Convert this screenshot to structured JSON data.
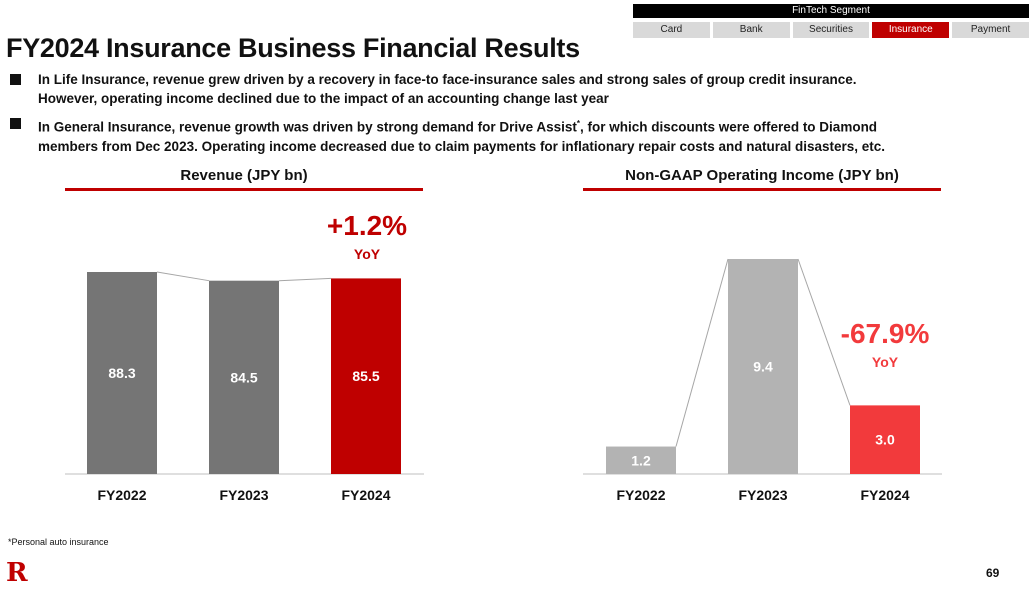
{
  "segment_nav": {
    "title": "FinTech Segment",
    "tabs": [
      {
        "label": "Card",
        "active": false
      },
      {
        "label": "Bank",
        "active": false
      },
      {
        "label": "Securities",
        "active": false
      },
      {
        "label": "Insurance",
        "active": true
      },
      {
        "label": "Payment",
        "active": false
      }
    ],
    "active_color": "#bf0000"
  },
  "page_title": "FY2024 Insurance Business Financial Results",
  "bullets": [
    {
      "lines": [
        "In Life Insurance, revenue grew driven by a recovery in face-to face-insurance sales and strong sales of group credit insurance.",
        "However, operating income declined due to the impact of an accounting change last year"
      ]
    },
    {
      "line1_pre": "In General Insurance, revenue growth was driven by strong demand for Drive Assist",
      "line1_sup": "*",
      "line1_post": ", for which discounts were offered to Diamond",
      "line2": "members from Dec 2023. Operating income decreased due to claim payments for inflationary repair costs and natural disasters, etc."
    }
  ],
  "footnote": "*Personal auto insurance",
  "page_number": "69",
  "logo_text": "R",
  "chart_data": [
    {
      "type": "bar",
      "title": "Revenue (JPY bn)",
      "categories": [
        "FY2022",
        "FY2023",
        "FY2024"
      ],
      "values": [
        88.3,
        84.5,
        85.5
      ],
      "value_labels": [
        "88.3",
        "84.5",
        "85.5"
      ],
      "colors": [
        "#757575",
        "#757575",
        "#bf0000"
      ],
      "annotation": {
        "value": "+1.2%",
        "sub": "YoY",
        "color": "#bf0000"
      }
    },
    {
      "type": "bar",
      "title": "Non-GAAP Operating Income (JPY bn)",
      "categories": [
        "FY2022",
        "FY2023",
        "FY2024"
      ],
      "values": [
        1.2,
        9.4,
        3.0
      ],
      "value_labels": [
        "1.2",
        "9.4",
        "3.0"
      ],
      "colors": [
        "#b3b3b3",
        "#b3b3b3",
        "#f23a3c"
      ],
      "annotation": {
        "value": "-67.9%",
        "sub": "YoY",
        "color": "#f23a3c"
      }
    }
  ]
}
